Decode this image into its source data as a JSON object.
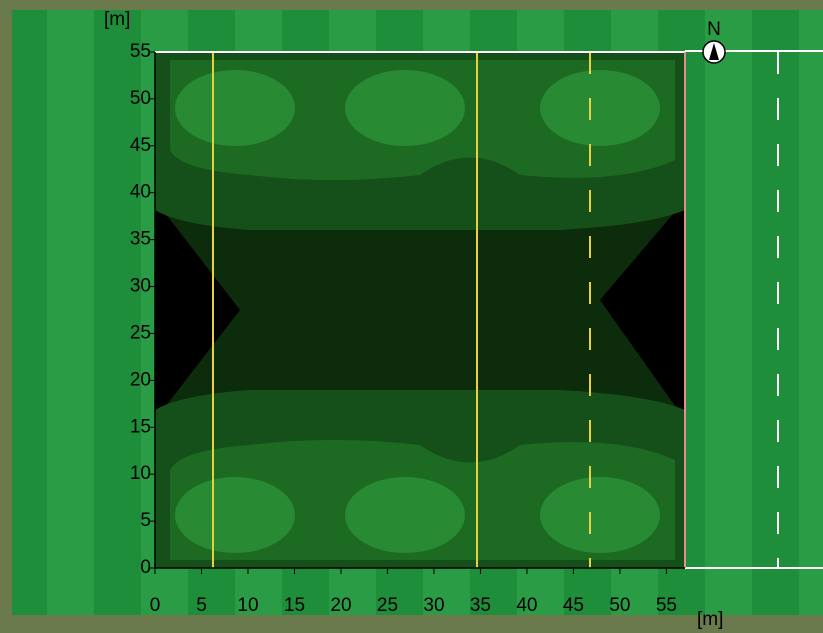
{
  "chart_data": {
    "type": "contour",
    "x_label": "[m]",
    "y_label": "[m]",
    "compass": "N",
    "xlim": [
      0,
      57
    ],
    "ylim": [
      0,
      55
    ],
    "xticks": [
      0,
      5,
      10,
      15,
      20,
      25,
      30,
      35,
      40,
      45,
      50,
      55
    ],
    "yticks": [
      0,
      5,
      10,
      15,
      20,
      25,
      30,
      35,
      40,
      45,
      50,
      55
    ]
  }
}
